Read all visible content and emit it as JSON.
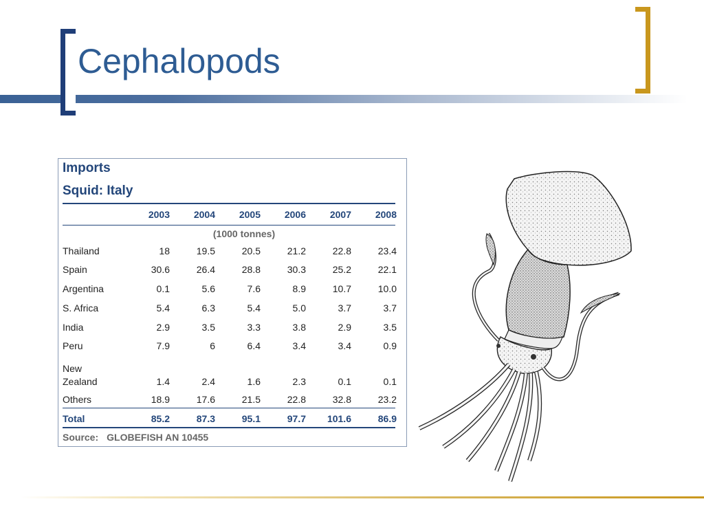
{
  "slide": {
    "title": "Cephalopods"
  },
  "table": {
    "heading": "Imports",
    "subheading": "Squid:  Italy",
    "years": [
      "2003",
      "2004",
      "2005",
      "2006",
      "2007",
      "2008"
    ],
    "unit": "(1000 tonnes)",
    "rows": [
      {
        "country": "Thailand",
        "values": [
          "18",
          "19.5",
          "20.5",
          "21.2",
          "22.8",
          "23.4"
        ]
      },
      {
        "country": "Spain",
        "values": [
          "30.6",
          "26.4",
          "28.8",
          "30.3",
          "25.2",
          "22.1"
        ]
      },
      {
        "country": "Argentina",
        "values": [
          "0.1",
          "5.6",
          "7.6",
          "8.9",
          "10.7",
          "10.0"
        ]
      },
      {
        "country": "S. Africa",
        "values": [
          "5.4",
          "6.3",
          "5.4",
          "5.0",
          "3.7",
          "3.7"
        ]
      },
      {
        "country": "India",
        "values": [
          "2.9",
          "3.5",
          "3.3",
          "3.8",
          "2.9",
          "3.5"
        ]
      },
      {
        "country": "Peru",
        "values": [
          "7.9",
          "6",
          "6.4",
          "3.4",
          "3.4",
          "0.9"
        ]
      },
      {
        "country": "New",
        "country2": "Zealand",
        "values": [
          "1.4",
          "2.4",
          "1.6",
          "2.3",
          "0.1",
          "0.1"
        ]
      },
      {
        "country": "Others",
        "values": [
          "18.9",
          "17.6",
          "21.5",
          "22.8",
          "32.8",
          "23.2"
        ]
      }
    ],
    "total": {
      "label": "Total",
      "values": [
        "85.2",
        "87.3",
        "95.1",
        "97.7",
        "101.6",
        "86.9"
      ]
    },
    "source_label": "Source:",
    "source_text": "GLOBEFISH AN 10455"
  },
  "illustration": {
    "icon": "squid-drawing"
  },
  "colors": {
    "title": "#2e5c93",
    "bracket_left": "#1f3e78",
    "bracket_right": "#c9971d",
    "table_accent": "#23467a"
  }
}
